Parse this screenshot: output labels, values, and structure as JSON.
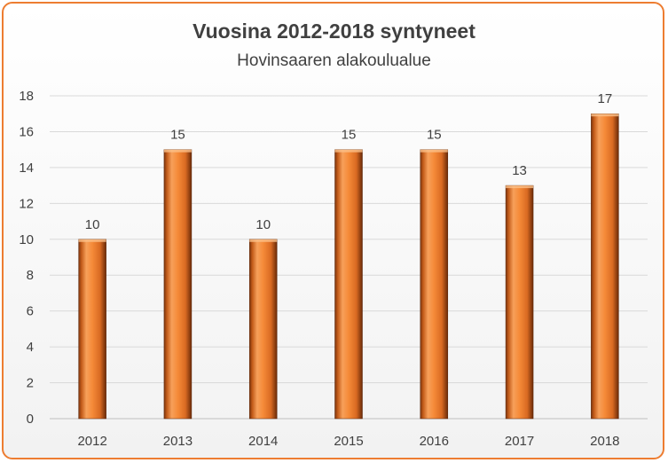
{
  "chart_data": {
    "type": "bar",
    "title": "Vuosina 2012-2018 syntyneet",
    "subtitle": "Hovinsaaren alakoulualue",
    "categories": [
      "2012",
      "2013",
      "2014",
      "2015",
      "2016",
      "2017",
      "2018"
    ],
    "values": [
      10,
      15,
      10,
      15,
      15,
      13,
      17
    ],
    "ylim": [
      0,
      18
    ],
    "yticks": [
      "0",
      "2",
      "4",
      "6",
      "8",
      "10",
      "12",
      "14",
      "16",
      "18"
    ],
    "xlabel": "",
    "ylabel": "",
    "grid": true,
    "bar_color": "#ED7D31",
    "border_color": "#ED7D31"
  }
}
